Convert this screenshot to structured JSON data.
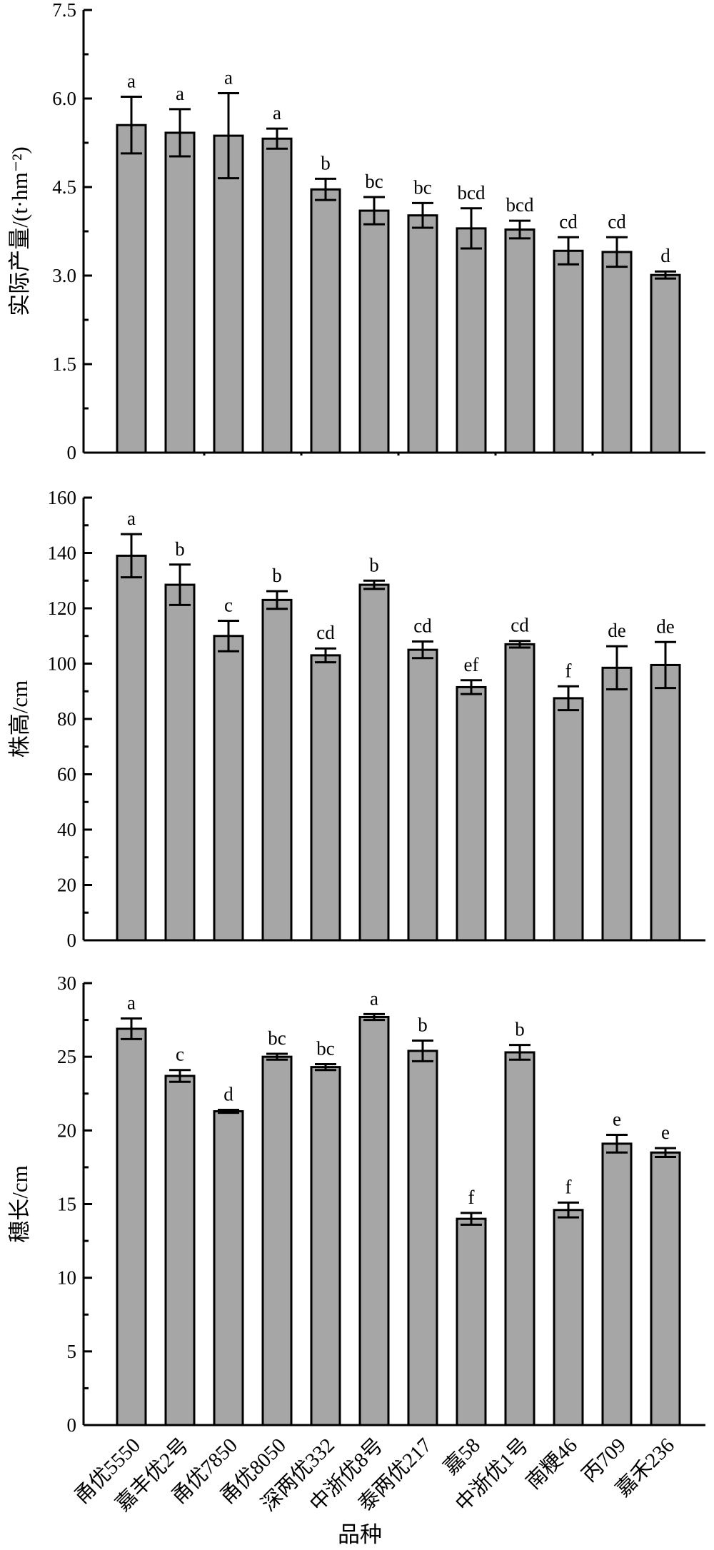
{
  "categories": [
    "甬优5550",
    "嘉丰优2号",
    "甬优7850",
    "甬优8050",
    "深两优332",
    "中浙优8号",
    "泰两优217",
    "嘉58",
    "中浙优1号",
    "南粳46",
    "丙709",
    "嘉禾236"
  ],
  "xlabel": "品种",
  "colors": {
    "bar": "#a6a6a6",
    "axis": "#000000"
  },
  "chart_data": [
    {
      "type": "bar",
      "ylabel": "实际产量/(t·hm⁻²)",
      "ylim": [
        0,
        7.5
      ],
      "yticks": [
        0,
        1.5,
        3.0,
        4.5,
        6.0,
        7.5
      ],
      "ytick_labels": [
        "0",
        "1.5",
        "3.0",
        "4.5",
        "6.0",
        "7.5"
      ],
      "values": [
        5.55,
        5.42,
        5.37,
        5.32,
        4.46,
        4.1,
        4.02,
        3.8,
        3.78,
        3.42,
        3.4,
        3.01
      ],
      "errors": [
        0.48,
        0.4,
        0.72,
        0.17,
        0.18,
        0.23,
        0.21,
        0.34,
        0.15,
        0.23,
        0.25,
        0.06
      ],
      "labels": [
        "a",
        "a",
        "a",
        "a",
        "b",
        "bc",
        "bc",
        "bcd",
        "bcd",
        "cd",
        "cd",
        "d"
      ]
    },
    {
      "type": "bar",
      "ylabel": "株高/cm",
      "ylim": [
        0,
        160
      ],
      "yticks": [
        0,
        20,
        40,
        60,
        80,
        100,
        120,
        140,
        160
      ],
      "ytick_labels": [
        "0",
        "20",
        "40",
        "60",
        "80",
        "100",
        "120",
        "140",
        "160"
      ],
      "values": [
        139.0,
        128.5,
        110.0,
        123.0,
        103.0,
        128.5,
        105.0,
        91.5,
        107.0,
        87.5,
        98.5,
        99.5
      ],
      "errors": [
        7.8,
        7.3,
        5.5,
        3.2,
        2.5,
        1.5,
        3.0,
        2.5,
        1.2,
        4.3,
        7.8,
        8.3
      ],
      "labels": [
        "a",
        "b",
        "c",
        "b",
        "cd",
        "b",
        "cd",
        "ef",
        "cd",
        "f",
        "de",
        "de"
      ]
    },
    {
      "type": "bar",
      "ylabel": "穗长/cm",
      "ylim": [
        0,
        30
      ],
      "yticks": [
        0,
        5,
        10,
        15,
        20,
        25,
        30
      ],
      "ytick_labels": [
        "0",
        "5",
        "10",
        "15",
        "20",
        "25",
        "30"
      ],
      "values": [
        26.9,
        23.7,
        21.3,
        25.0,
        24.3,
        27.7,
        25.4,
        14.0,
        25.3,
        14.6,
        19.1,
        18.5
      ],
      "errors": [
        0.7,
        0.4,
        0.1,
        0.2,
        0.2,
        0.2,
        0.7,
        0.4,
        0.5,
        0.5,
        0.6,
        0.3
      ],
      "labels": [
        "a",
        "c",
        "d",
        "bc",
        "bc",
        "a",
        "b",
        "f",
        "b",
        "f",
        "e",
        "e"
      ]
    }
  ]
}
